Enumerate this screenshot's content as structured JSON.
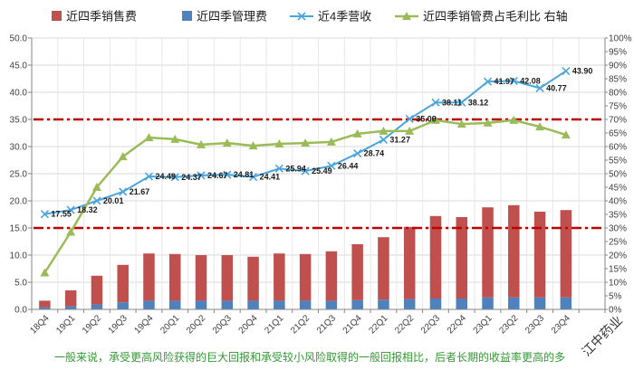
{
  "chart_data": {
    "type": "bar",
    "stacked": true,
    "categories": [
      "18Q4",
      "19Q1",
      "19Q2",
      "19Q3",
      "19Q4",
      "20Q1",
      "20Q2",
      "20Q3",
      "20Q4",
      "21Q1",
      "21Q2",
      "21Q3",
      "21Q4",
      "22Q1",
      "22Q2",
      "22Q3",
      "22Q4",
      "23Q1",
      "23Q2",
      "23Q3",
      "23Q4"
    ],
    "series": [
      {
        "name": "近四季销售费",
        "type": "bar",
        "axis": "left",
        "color": "#c0504d",
        "values": [
          1.2,
          2.9,
          5.3,
          6.9,
          8.7,
          8.6,
          8.4,
          8.4,
          8.1,
          8.7,
          8.6,
          9.1,
          10.3,
          11.5,
          13.3,
          15.2,
          15.0,
          16.6,
          17.0,
          15.8,
          16.1
        ]
      },
      {
        "name": "近四季管理费",
        "type": "bar",
        "axis": "left",
        "color": "#4f81bd",
        "values": [
          0.4,
          0.6,
          0.9,
          1.3,
          1.6,
          1.6,
          1.6,
          1.6,
          1.6,
          1.6,
          1.6,
          1.6,
          1.7,
          1.8,
          1.9,
          2.0,
          2.0,
          2.2,
          2.2,
          2.2,
          2.2
        ]
      },
      {
        "name": "近4季营收",
        "type": "line",
        "axis": "left",
        "color": "#4aa5dc",
        "marker": "x",
        "values": [
          17.55,
          18.32,
          20.01,
          21.67,
          24.49,
          24.37,
          24.67,
          24.81,
          24.41,
          25.94,
          25.49,
          26.44,
          28.74,
          31.27,
          35.09,
          38.11,
          38.12,
          41.97,
          42.08,
          40.77,
          43.9
        ],
        "data_labels": [
          "17.55",
          "18.32",
          "20.01",
          "21.67",
          "24.49",
          "24.37",
          "24.67",
          "24.81",
          "24.41",
          "25.94",
          "25.49",
          "26.44",
          "28.74",
          "31.27",
          "35.09",
          "38.11",
          "38.12",
          "41.97",
          "42.08",
          "40.77",
          "43.90"
        ]
      },
      {
        "name": "近四季销管费占毛利比 右轴",
        "type": "line",
        "axis": "right",
        "color": "#9bbb59",
        "marker": "triangle",
        "values": [
          13.5,
          28.5,
          45.0,
          56.3,
          63.3,
          62.7,
          60.7,
          61.3,
          60.3,
          61.0,
          61.3,
          61.7,
          64.7,
          65.7,
          65.7,
          69.7,
          68.3,
          68.7,
          69.7,
          67.3,
          64.3
        ]
      }
    ],
    "ylim": [
      0,
      50
    ],
    "y_ticks": [
      "0.0",
      "5.0",
      "10.0",
      "15.0",
      "20.0",
      "25.0",
      "30.0",
      "35.0",
      "40.0",
      "45.0",
      "50.0"
    ],
    "y2lim": [
      0,
      100
    ],
    "y2_ticks": [
      "0%",
      "5%",
      "10%",
      "15%",
      "20%",
      "25%",
      "30%",
      "35%",
      "40%",
      "45%",
      "50%",
      "55%",
      "60%",
      "65%",
      "70%",
      "75%",
      "80%",
      "85%",
      "90%",
      "95%",
      "100%"
    ],
    "reference_lines": [
      {
        "axis": "left",
        "value": 35,
        "color": "#c00000",
        "style": "dash-dot"
      },
      {
        "axis": "left",
        "value": 15,
        "color": "#c00000",
        "style": "dash-dot"
      }
    ],
    "grid": true,
    "legend": "top"
  },
  "footer": {
    "note": "一般来说，承受更高风险获得的巨大回报和承受较小风险取得的一般回报相比，后者长期的收益率更高的多",
    "color": "#339933"
  },
  "corner_label": {
    "text": "江中药业"
  }
}
